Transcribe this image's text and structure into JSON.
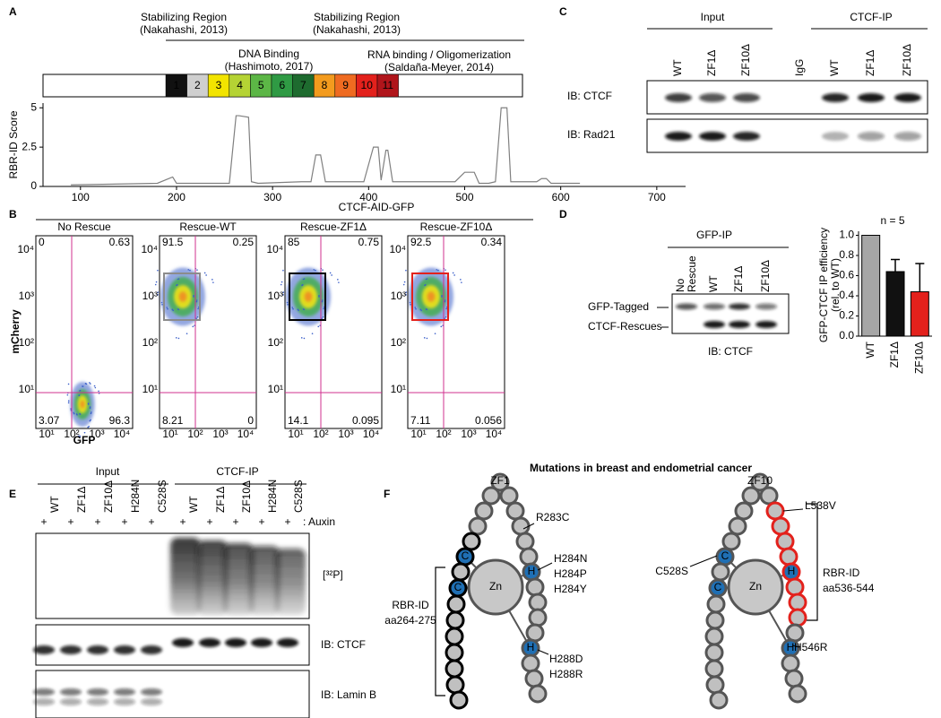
{
  "panel_labels": [
    "A",
    "B",
    "C",
    "D",
    "E",
    "F"
  ],
  "panel_a": {
    "annotations": [
      {
        "title": "Stabilizing Region",
        "source": "(Nakahashi, 2013)"
      },
      {
        "title": "DNA Binding",
        "source": "(Hashimoto, 2017)"
      },
      {
        "title": "Stabilizing Region",
        "source": "(Nakahashi, 2013)"
      },
      {
        "title": "RNA binding / Oligomerization",
        "source": "(Saldaña-Meyer, 2014)"
      }
    ],
    "zinc_fingers": [
      {
        "label": "1",
        "color": "#111111"
      },
      {
        "label": "2",
        "color": "#cfcfcf"
      },
      {
        "label": "3",
        "color": "#f2e400"
      },
      {
        "label": "4",
        "color": "#b5d334"
      },
      {
        "label": "5",
        "color": "#5cb646"
      },
      {
        "label": "6",
        "color": "#2f9a44"
      },
      {
        "label": "7",
        "color": "#1e6b2f"
      },
      {
        "label": "8",
        "color": "#f39b1e"
      },
      {
        "label": "9",
        "color": "#ef6b21"
      },
      {
        "label": "10",
        "color": "#e3211c"
      },
      {
        "label": "11",
        "color": "#b0151b"
      }
    ]
  },
  "chart_data": [
    {
      "type": "line",
      "y_label": "RBR-ID Score",
      "color": "#808080",
      "x": [
        90,
        180,
        192,
        196,
        200,
        215,
        255,
        262,
        265,
        275,
        278,
        285,
        330,
        340,
        345,
        350,
        355,
        365,
        390,
        395,
        405,
        410,
        413,
        418,
        420,
        425,
        428,
        432,
        450,
        490,
        500,
        510,
        515,
        525,
        532,
        538,
        544,
        548,
        555,
        575,
        580,
        585,
        590,
        620
      ],
      "values": [
        0.1,
        0.2,
        0.5,
        0.6,
        0.2,
        0.2,
        0.2,
        4.5,
        4.5,
        4.4,
        0.3,
        0.2,
        0.3,
        0.3,
        2.0,
        2.0,
        0.3,
        0.3,
        0.3,
        0.3,
        2.5,
        2.5,
        0.4,
        2.3,
        2.3,
        0.3,
        0.3,
        0.3,
        0.3,
        0.3,
        0.9,
        0.9,
        0.2,
        0.2,
        0.3,
        5.0,
        5.0,
        0.3,
        0.3,
        0.3,
        0.5,
        0.5,
        0.2,
        0.2
      ],
      "xlim": [
        61,
        730
      ],
      "ylim": [
        0,
        5.3
      ],
      "xticks": [
        100,
        200,
        300,
        400,
        500,
        600,
        700
      ],
      "yticks": [
        0,
        2.5,
        5
      ]
    },
    {
      "type": "bar",
      "title": "n = 5",
      "y_label": [
        "GFP-CTCF IP efficiency",
        "(rel. to WT)"
      ],
      "categories": [
        "WT",
        "ZF1Δ",
        "ZF10Δ"
      ],
      "values": [
        1.0,
        0.64,
        0.44
      ],
      "errors": [
        null,
        0.12,
        0.28
      ],
      "colors": [
        "#a6a6a6",
        "#111111",
        "#e3211c"
      ],
      "label_colors": [
        "#8c8c8c",
        "#000000",
        "#e3211c"
      ],
      "ylim": [
        0,
        1.04
      ],
      "yticks": [
        {
          "value": 0,
          "label": "0.0"
        },
        {
          "value": 0.2,
          "label": "0.2"
        },
        {
          "value": 0.4,
          "label": "0.4"
        },
        {
          "value": 0.6,
          "label": "0.6"
        },
        {
          "value": 0.8,
          "label": "0.8"
        },
        {
          "value": 1,
          "label": "1.0"
        }
      ]
    }
  ],
  "panel_b": {
    "title": "CTCF-AID-GFP",
    "y_label": "mCherry",
    "x_label": "GFP",
    "tick_labels": [
      "10¹",
      "10²",
      "10³",
      "10⁴"
    ],
    "plots": [
      {
        "title": "No Rescue",
        "color": "#000000",
        "quadrants": [
          0,
          0.63,
          3.07,
          96.3
        ]
      },
      {
        "title": "Rescue-WT",
        "color": "#8c8c8c",
        "quadrants": [
          91.5,
          0.25,
          8.21,
          0
        ]
      },
      {
        "title": "Rescue-ZF1Δ",
        "color": "#000000",
        "quadrants": [
          85,
          0.75,
          14.1,
          0.095
        ]
      },
      {
        "title": "Rescue-ZF10Δ",
        "color": "#e3211c",
        "quadrants": [
          92.5,
          0.34,
          7.11,
          0.056
        ]
      }
    ]
  },
  "panel_c": {
    "groups": [
      "Input",
      "CTCF-IP"
    ],
    "lanes": [
      {
        "label": "WT",
        "color": "#8c8c8c"
      },
      {
        "label": "ZF1Δ",
        "color": "#000000"
      },
      {
        "label": "ZF10Δ",
        "color": "#e3211c"
      },
      {
        "label": "IgG",
        "color": "#000000"
      },
      {
        "label": "WT",
        "color": "#8c8c8c"
      },
      {
        "label": "ZF1Δ",
        "color": "#000000"
      },
      {
        "label": "ZF10Δ",
        "color": "#e3211c"
      }
    ],
    "blots": [
      "IB: CTCF",
      "IB: Rad21"
    ]
  },
  "panel_d": {
    "title": "GFP-IP",
    "lanes": [
      {
        "label": [
          "No",
          "Rescue"
        ],
        "color": "#000000"
      },
      {
        "label": [
          "WT"
        ],
        "color": "#8c8c8c"
      },
      {
        "label": [
          "ZF1Δ"
        ],
        "color": "#000000"
      },
      {
        "label": [
          "ZF10Δ"
        ],
        "color": "#e3211c"
      }
    ],
    "bands": [
      "GFP-Tagged",
      "CTCF-Rescues"
    ],
    "blot": "IB: CTCF"
  },
  "panel_e": {
    "groups": [
      "Input",
      "CTCF-IP"
    ],
    "lanes": [
      {
        "label": "WT",
        "color": "#8c8c8c"
      },
      {
        "label": "ZF1Δ",
        "color": "#000000"
      },
      {
        "label": "ZF10Δ",
        "color": "#e3211c"
      },
      {
        "label": "H284N",
        "color": "#000000"
      },
      {
        "label": "C528S",
        "color": "#000000"
      },
      {
        "label": "WT",
        "color": "#8c8c8c"
      },
      {
        "label": "ZF1Δ",
        "color": "#000000"
      },
      {
        "label": "ZF10Δ",
        "color": "#e3211c"
      },
      {
        "label": "H284N",
        "color": "#000000"
      },
      {
        "label": "C528S",
        "color": "#000000"
      }
    ],
    "treatment": {
      "symbol": "+",
      "label": ": Auxin"
    },
    "blots": [
      "[³²P]",
      "IB: CTCF",
      "IB: Lamin B"
    ]
  },
  "panel_f": {
    "title": "Mutations in breast and endometrial cancer",
    "zn": "Zn",
    "cys": "C",
    "his": "H",
    "zf1": {
      "name": "ZF1",
      "rbr_label": "RBR-ID",
      "rbr_range": "aa264-275",
      "blue_mutation": "R283C",
      "h284": [
        "H284N",
        "H284P",
        "H284Y"
      ],
      "h288": [
        "H288D",
        "H288R"
      ]
    },
    "zf10": {
      "name": "ZF10",
      "rbr_label": "RBR-ID",
      "rbr_range": "aa536-544",
      "blue_mutation": "L538V",
      "c528": "C528S",
      "h546": "H546R"
    }
  }
}
